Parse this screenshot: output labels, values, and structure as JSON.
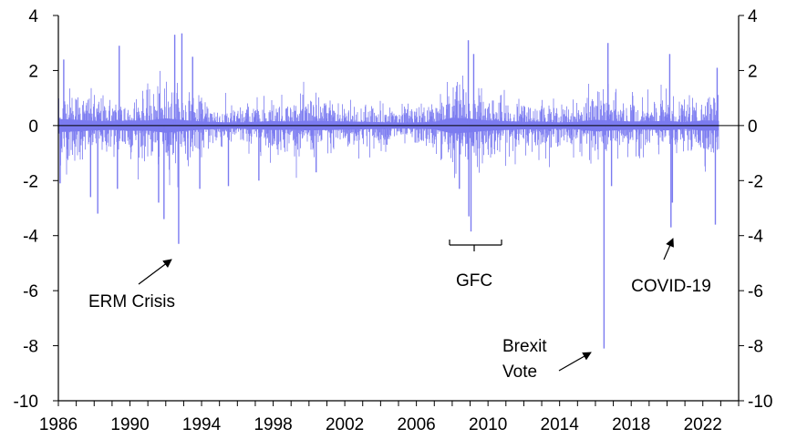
{
  "chart_data": {
    "type": "line",
    "title": "",
    "xlabel": "",
    "ylabel": "",
    "xlim": [
      1986,
      2024
    ],
    "ylim": [
      -10,
      4
    ],
    "y_ticks_left": [
      4,
      2,
      0,
      -2,
      -4,
      -6,
      -8,
      -10
    ],
    "y_ticks_right": [
      4,
      2,
      0,
      -2,
      -4,
      -6,
      -8,
      -10
    ],
    "x_ticks": [
      1986,
      1990,
      1994,
      1998,
      2002,
      2006,
      2010,
      2014,
      2018,
      2022
    ],
    "grid": false,
    "legend": "none",
    "series": [
      {
        "color": "#7b7bf0",
        "volatility_by_year": [
          [
            1986,
            0.95
          ],
          [
            1987,
            0.85
          ],
          [
            1988,
            0.7
          ],
          [
            1989,
            0.65
          ],
          [
            1990,
            0.75
          ],
          [
            1991,
            0.75
          ],
          [
            1992,
            1.05
          ],
          [
            1993,
            0.8
          ],
          [
            1994,
            0.6
          ],
          [
            1995,
            0.5
          ],
          [
            1996,
            0.45
          ],
          [
            1997,
            0.55
          ],
          [
            1998,
            0.65
          ],
          [
            1999,
            0.6
          ],
          [
            2000,
            0.7
          ],
          [
            2001,
            0.65
          ],
          [
            2002,
            0.6
          ],
          [
            2003,
            0.55
          ],
          [
            2004,
            0.5
          ],
          [
            2005,
            0.45
          ],
          [
            2006,
            0.45
          ],
          [
            2007,
            0.55
          ],
          [
            2008,
            1.15
          ],
          [
            2009,
            1.0
          ],
          [
            2010,
            0.75
          ],
          [
            2011,
            0.65
          ],
          [
            2012,
            0.55
          ],
          [
            2013,
            0.6
          ],
          [
            2014,
            0.45
          ],
          [
            2015,
            0.55
          ],
          [
            2016,
            0.85
          ],
          [
            2017,
            0.7
          ],
          [
            2018,
            0.6
          ],
          [
            2019,
            0.6
          ],
          [
            2020,
            0.7
          ],
          [
            2021,
            0.5
          ],
          [
            2022,
            0.75
          ],
          [
            2022.9,
            0.7
          ]
        ],
        "extremes": [
          {
            "x": 1986.1,
            "y": -2.1
          },
          {
            "x": 1986.3,
            "y": 2.4
          },
          {
            "x": 1987.8,
            "y": -2.6
          },
          {
            "x": 1988.2,
            "y": -3.2
          },
          {
            "x": 1989.3,
            "y": -2.3
          },
          {
            "x": 1989.4,
            "y": 2.9
          },
          {
            "x": 1991.6,
            "y": -2.8
          },
          {
            "x": 1991.9,
            "y": -3.4
          },
          {
            "x": 1992.5,
            "y": 3.3
          },
          {
            "x": 1992.72,
            "y": -4.3
          },
          {
            "x": 1992.9,
            "y": 3.35
          },
          {
            "x": 1993.5,
            "y": 2.5
          },
          {
            "x": 1993.9,
            "y": -2.3
          },
          {
            "x": 1995.5,
            "y": -2.2
          },
          {
            "x": 1997.2,
            "y": -2.0
          },
          {
            "x": 2000.4,
            "y": -1.7
          },
          {
            "x": 2008.4,
            "y": -2.3
          },
          {
            "x": 2008.9,
            "y": 3.1
          },
          {
            "x": 2008.93,
            "y": -3.3
          },
          {
            "x": 2009.05,
            "y": -3.85
          },
          {
            "x": 2009.2,
            "y": 2.6
          },
          {
            "x": 2016.48,
            "y": -8.1
          },
          {
            "x": 2016.7,
            "y": 3.0
          },
          {
            "x": 2016.9,
            "y": -2.2
          },
          {
            "x": 2020.15,
            "y": 2.6
          },
          {
            "x": 2020.22,
            "y": -3.7
          },
          {
            "x": 2020.3,
            "y": -2.8
          },
          {
            "x": 2022.7,
            "y": -3.6
          },
          {
            "x": 2022.8,
            "y": 2.1
          }
        ]
      }
    ],
    "annotations": [
      {
        "label": "ERM Crisis"
      },
      {
        "label": "GFC"
      },
      {
        "label": "Brexit"
      },
      {
        "label": "Vote"
      },
      {
        "label": "COVID-19"
      }
    ]
  }
}
